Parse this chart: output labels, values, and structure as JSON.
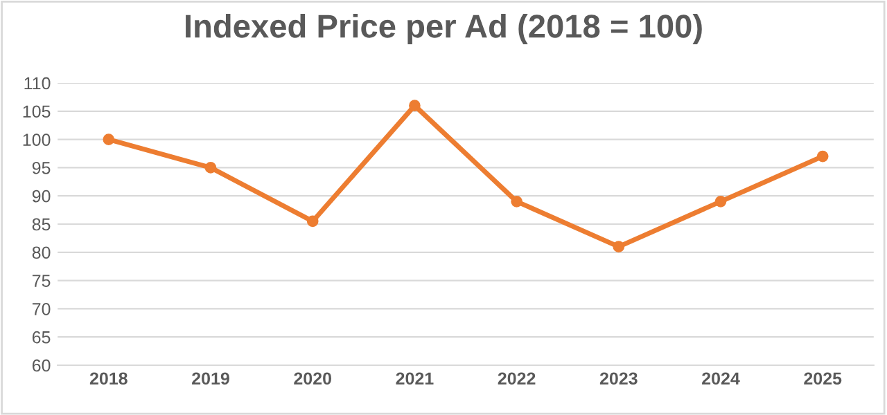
{
  "chart_data": {
    "type": "line",
    "title": "Indexed Price per Ad (2018 = 100)",
    "categories": [
      "2018",
      "2019",
      "2020",
      "2021",
      "2022",
      "2023",
      "2024",
      "2025"
    ],
    "series": [
      {
        "color": "#ed7d31",
        "values": [
          100,
          95,
          85.5,
          106,
          89,
          81,
          89,
          97
        ]
      }
    ],
    "ylim": [
      60,
      110
    ],
    "yticks": [
      60,
      65,
      70,
      75,
      80,
      85,
      90,
      95,
      100,
      105,
      110
    ],
    "grid": "y",
    "marker": "circle",
    "line_style": "solid"
  }
}
